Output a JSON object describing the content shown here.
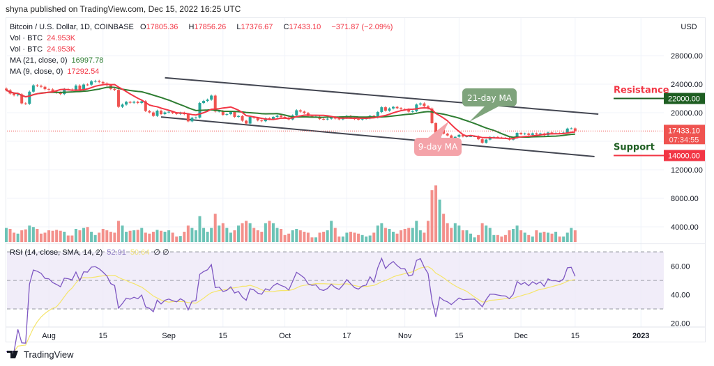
{
  "published": "shyna published on TradingView.com, Dec 15, 2022 16:25 UTC",
  "legend": {
    "symbol": "Bitcoin / U.S. Dollar, 1D, COINBASE",
    "open_label": "O",
    "open": "17805.36",
    "high_label": "H",
    "high": "17856.26",
    "low_label": "L",
    "low": "17376.67",
    "close_label": "C",
    "close": "17433.10",
    "change": "−371.87 (−2.09%)",
    "vol1_label": "Vol · BTC",
    "vol1": "24.953K",
    "vol2_label": "Vol · BTC",
    "vol2": "24.953K",
    "ma21_label": "MA (21, close, 0)",
    "ma21": "16997.78",
    "ma9_label": "MA (9, close, 0)",
    "ma9": "17292.54",
    "rsi_label": "RSI (14, close, SMA, 14, 2)",
    "rsi": "52.91",
    "rsi_sma": "50.64",
    "rsi_extra": "∅ ∅"
  },
  "price_axis": {
    "unit": "USD",
    "ticks": [
      "28000.00",
      "24000.00",
      "20000.00",
      "12000.00",
      "8000.00",
      "4000.00"
    ],
    "last_price": "17433.10",
    "countdown": "07:34:55"
  },
  "rsi_axis": {
    "ticks": [
      "60.00",
      "40.00",
      "20.00"
    ]
  },
  "annotations": {
    "resistance": {
      "text": "Resistance",
      "level": 22000,
      "label": "22000.00"
    },
    "support": {
      "text": "Support",
      "level": 14000,
      "label": "14000.00"
    },
    "ma21_callout": "21-day MA",
    "ma9_callout": "9-day MA"
  },
  "logo_text": "TradingView",
  "colors": {
    "up": "#26a69a",
    "down": "#ef5350",
    "ma21": "#2e7d32",
    "ma9": "#f23645",
    "rsi": "#7e57c2",
    "rsi_sma": "#f5e56b",
    "resistance_bg": "#1e5e22",
    "support_bg": "#f23645"
  },
  "chart_data": {
    "type": "candlestick",
    "title": "Bitcoin / U.S. Dollar, 1D, COINBASE",
    "start_date": "2022-07-21",
    "end_date": "2022-12-15",
    "ylim": [
      0,
      30000
    ],
    "time_ticks": [
      {
        "date": "2022-08-01",
        "label": "Aug"
      },
      {
        "date": "2022-08-15",
        "label": "15"
      },
      {
        "date": "2022-09-01",
        "label": "Sep"
      },
      {
        "date": "2022-09-15",
        "label": "15"
      },
      {
        "date": "2022-10-01",
        "label": "Oct"
      },
      {
        "date": "2022-10-17",
        "label": "17"
      },
      {
        "date": "2022-11-01",
        "label": "Nov"
      },
      {
        "date": "2022-11-15",
        "label": "15"
      },
      {
        "date": "2022-12-01",
        "label": "Dec"
      },
      {
        "date": "2022-12-15",
        "label": "15"
      },
      {
        "date": "2023-01-01",
        "label": "2023"
      }
    ],
    "close": [
      23150,
      22680,
      22450,
      22580,
      21310,
      21250,
      22950,
      23840,
      23770,
      23640,
      23300,
      23270,
      22980,
      22820,
      22620,
      23310,
      23260,
      23180,
      23810,
      23160,
      23950,
      23930,
      24400,
      24440,
      24310,
      24100,
      23860,
      23340,
      23200,
      20830,
      21140,
      21520,
      21400,
      21530,
      21370,
      21600,
      20240,
      20040,
      19550,
      20290,
      19800,
      20050,
      20130,
      19950,
      19830,
      20000,
      19800,
      18790,
      19290,
      19320,
      21360,
      21650,
      21830,
      22400,
      20180,
      20240,
      19700,
      19800,
      20110,
      19420,
      19540,
      18880,
      18480,
      19410,
      19290,
      18920,
      18810,
      19220,
      19080,
      19410,
      19590,
      19420,
      19310,
      19060,
      19630,
      20340,
      20160,
      19960,
      19530,
      19420,
      19450,
      19130,
      19060,
      19160,
      19380,
      19180,
      19070,
      19270,
      19550,
      19330,
      19120,
      19040,
      19170,
      19210,
      19570,
      19330,
      20090,
      20770,
      20290,
      20600,
      20820,
      20630,
      20490,
      20480,
      20150,
      20210,
      21150,
      21300,
      20910,
      20590,
      18540,
      15880,
      17590,
      17070,
      16810,
      16330,
      16620,
      16900,
      16660,
      16690,
      16700,
      16700,
      16280,
      15780,
      16230,
      16600,
      16600,
      16520,
      16460,
      16440,
      16220,
      16440,
      17170,
      16980,
      17090,
      16890,
      17110,
      16970,
      17090,
      16840,
      17230,
      17130,
      17130,
      17090,
      17210,
      17780,
      17805.36,
      17433.1
    ],
    "volume_k": [
      30,
      28,
      20,
      18,
      25,
      27,
      35,
      32,
      28,
      18,
      20,
      25,
      24,
      26,
      24,
      22,
      14,
      14,
      28,
      25,
      30,
      32,
      22,
      15,
      20,
      28,
      25,
      22,
      20,
      45,
      35,
      22,
      24,
      25,
      26,
      30,
      20,
      18,
      22,
      26,
      24,
      22,
      25,
      20,
      12,
      13,
      22,
      35,
      30,
      25,
      55,
      30,
      22,
      30,
      60,
      35,
      40,
      30,
      20,
      25,
      35,
      40,
      45,
      40,
      30,
      25,
      22,
      40,
      45,
      40,
      30,
      28,
      15,
      18,
      25,
      28,
      25,
      22,
      20,
      10,
      10,
      20,
      22,
      25,
      45,
      30,
      12,
      12,
      20,
      22,
      20,
      18,
      15,
      12,
      14,
      20,
      35,
      40,
      30,
      28,
      22,
      18,
      25,
      28,
      30,
      30,
      45,
      25,
      20,
      45,
      110,
      120,
      90,
      60,
      40,
      30,
      40,
      35,
      25,
      25,
      18,
      10,
      15,
      40,
      35,
      30,
      15,
      15,
      12,
      15,
      25,
      28,
      35,
      25,
      20,
      15,
      12,
      25,
      20,
      22,
      20,
      18,
      22,
      12,
      12,
      20,
      30,
      24.953
    ],
    "indicators": [
      "MA 21",
      "MA 9",
      "RSI 14 with SMA 14"
    ],
    "trend_lines": [
      {
        "from": [
          "2022-08-31",
          24900
        ],
        "to": [
          "2022-12-21",
          19800
        ]
      },
      {
        "from": [
          "2022-08-30",
          19400
        ],
        "to": [
          "2022-12-20",
          13850
        ]
      }
    ],
    "rsi_levels": [
      70,
      50,
      30
    ]
  }
}
